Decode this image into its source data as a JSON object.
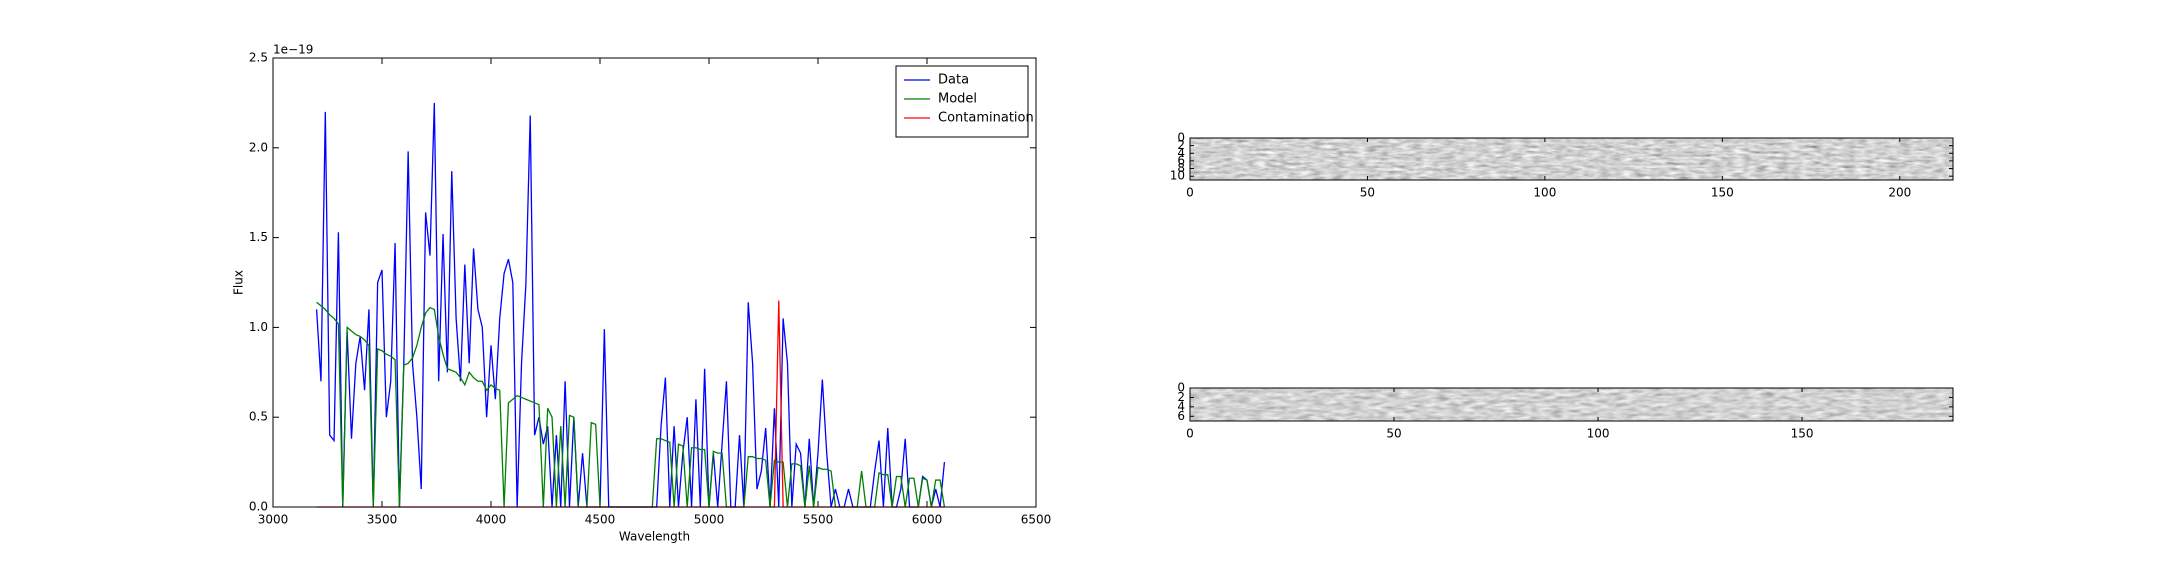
{
  "chart_data": [
    {
      "type": "line",
      "xlabel": "Wavelength",
      "ylabel": "Flux",
      "offset_label": "1e−19",
      "xlim": [
        3000,
        6500
      ],
      "xticks": [
        3000,
        3500,
        4000,
        4500,
        5000,
        5500,
        6000,
        6500
      ],
      "ylim": [
        0,
        2.5
      ],
      "yticks": [
        {
          "value": 0,
          "label": "0.0"
        },
        0.5,
        {
          "value": 1,
          "label": "1.0"
        },
        1.5,
        {
          "value": 2,
          "label": "2.0"
        },
        2.5
      ],
      "grid": false,
      "legend": "upper right",
      "x": [
        3200,
        3220,
        3240,
        3260,
        3280,
        3300,
        3320,
        3340,
        3360,
        3380,
        3400,
        3420,
        3440,
        3460,
        3480,
        3500,
        3520,
        3540,
        3560,
        3580,
        3600,
        3620,
        3640,
        3660,
        3680,
        3700,
        3720,
        3740,
        3760,
        3780,
        3800,
        3820,
        3840,
        3860,
        3880,
        3900,
        3920,
        3940,
        3960,
        3980,
        4000,
        4020,
        4040,
        4060,
        4080,
        4100,
        4120,
        4140,
        4160,
        4180,
        4200,
        4220,
        4240,
        4260,
        4280,
        4300,
        4320,
        4340,
        4360,
        4380,
        4400,
        4420,
        4440,
        4460,
        4480,
        4500,
        4520,
        4540,
        4560,
        4580,
        4600,
        4620,
        4640,
        4660,
        4680,
        4700,
        4720,
        4740,
        4760,
        4780,
        4800,
        4820,
        4840,
        4860,
        4880,
        4900,
        4920,
        4940,
        4960,
        4980,
        5000,
        5020,
        5040,
        5060,
        5080,
        5100,
        5120,
        5140,
        5160,
        5180,
        5200,
        5220,
        5240,
        5260,
        5280,
        5300,
        5320,
        5340,
        5360,
        5380,
        5400,
        5420,
        5440,
        5460,
        5480,
        5500,
        5520,
        5540,
        5560,
        5580,
        5600,
        5620,
        5640,
        5660,
        5680,
        5700,
        5720,
        5740,
        5760,
        5780,
        5800,
        5820,
        5840,
        5860,
        5880,
        5900,
        5920,
        5940,
        5960,
        5980,
        6000,
        6020,
        6040,
        6060,
        6080
      ],
      "series": [
        {
          "name": "Data",
          "color": "#0000ff",
          "values": [
            1.1,
            0.7,
            2.2,
            0.4,
            0.37,
            1.53,
            0,
            0.98,
            0.38,
            0.8,
            0.95,
            0.65,
            1.1,
            0,
            1.25,
            1.32,
            0.5,
            0.7,
            1.47,
            0,
            0.8,
            1.98,
            0.8,
            0.5,
            0.1,
            1.64,
            1.4,
            2.25,
            0.7,
            1.52,
            0.75,
            1.87,
            1.05,
            0.7,
            1.35,
            0.8,
            1.44,
            1.1,
            1.0,
            0.5,
            0.9,
            0.6,
            1.05,
            1.3,
            1.38,
            1.25,
            0,
            0.8,
            1.24,
            2.18,
            0.4,
            0.5,
            0.35,
            0.45,
            0,
            0.4,
            0,
            0.7,
            0,
            0.5,
            0,
            0.3,
            0,
            0,
            0,
            0,
            0.99,
            0,
            0,
            0,
            0,
            0,
            0,
            0,
            0,
            0,
            0,
            0,
            0,
            0.45,
            0.72,
            0,
            0.45,
            0,
            0.3,
            0.5,
            0,
            0.6,
            0,
            0.77,
            0,
            0.3,
            0,
            0.35,
            0.7,
            0,
            0,
            0.4,
            0,
            1.14,
            0.8,
            0.1,
            0.2,
            0.44,
            0,
            0.55,
            0,
            1.05,
            0.8,
            0,
            0.35,
            0.3,
            0,
            0.38,
            0,
            0.3,
            0.71,
            0.3,
            0,
            0.1,
            0,
            0,
            0.1,
            0,
            0,
            0,
            0,
            0,
            0.2,
            0.37,
            0,
            0.44,
            0,
            0,
            0.1,
            0.38,
            0,
            0,
            0,
            0.17,
            0.15,
            0,
            0.1,
            0,
            0.25
          ]
        },
        {
          "name": "Model",
          "color": "#008000",
          "values": [
            1.14,
            1.12,
            1.1,
            1.07,
            1.05,
            1.02,
            0,
            1.0,
            0.98,
            0.96,
            0.95,
            0.93,
            0.9,
            0,
            0.88,
            0.87,
            0.85,
            0.84,
            0.82,
            0,
            0.79,
            0.8,
            0.83,
            0.9,
            1.0,
            1.08,
            1.11,
            1.1,
            0.95,
            0.85,
            0.77,
            0.76,
            0.75,
            0.72,
            0.68,
            0.75,
            0.72,
            0.7,
            0.7,
            0.65,
            0.68,
            0.66,
            0.65,
            0,
            0.58,
            0.6,
            0.62,
            0.61,
            0.6,
            0.59,
            0.58,
            0.57,
            0,
            0.55,
            0.5,
            0,
            0.45,
            0,
            0.51,
            0.5,
            0,
            0,
            0,
            0.47,
            0.46,
            0,
            0,
            0,
            0,
            0,
            0,
            0,
            0,
            0,
            0,
            0,
            0,
            0,
            0.38,
            0.38,
            0.37,
            0.36,
            0,
            0.35,
            0.34,
            0,
            0.33,
            0.33,
            0.32,
            0.32,
            0,
            0.31,
            0.3,
            0.3,
            0,
            0,
            0,
            0,
            0,
            0.28,
            0.28,
            0.27,
            0.27,
            0.26,
            0,
            0.26,
            0.25,
            0.25,
            0,
            0.24,
            0.24,
            0.23,
            0,
            0.23,
            0,
            0.22,
            0.21,
            0.21,
            0.2,
            0,
            0,
            0,
            0,
            0,
            0,
            0.2,
            0,
            0,
            0,
            0.19,
            0.18,
            0.18,
            0,
            0.17,
            0.17,
            0,
            0.16,
            0.16,
            0,
            0.16,
            0.15,
            0,
            0.15,
            0.15,
            0
          ]
        },
        {
          "name": "Contamination",
          "color": "#ff0000",
          "values": [
            0,
            0,
            0,
            0,
            0,
            0,
            0,
            0,
            0,
            0,
            0,
            0,
            0,
            0,
            0,
            0,
            0,
            0,
            0,
            0,
            0,
            0,
            0,
            0,
            0,
            0,
            0,
            0,
            0,
            0,
            0,
            0,
            0,
            0,
            0,
            0,
            0,
            0,
            0,
            0,
            0,
            0,
            0,
            0,
            0,
            0,
            0,
            0,
            0,
            0,
            0,
            0,
            0,
            0,
            0,
            0,
            0,
            0,
            0,
            0,
            0,
            0,
            0,
            0,
            0,
            0,
            0,
            0,
            0,
            0,
            0,
            0,
            0,
            0,
            0,
            0,
            0,
            0,
            0,
            0,
            0,
            0,
            0,
            0,
            0,
            0,
            0,
            0,
            0,
            0,
            0,
            0,
            0,
            0,
            0,
            0,
            0,
            0,
            0,
            0,
            0,
            0,
            0,
            0,
            0,
            0,
            1.15,
            0,
            0,
            0,
            0,
            0,
            0,
            0,
            0,
            0,
            0,
            0,
            0,
            0,
            0,
            0,
            0,
            0,
            0,
            0,
            0,
            0,
            0,
            0,
            0,
            0,
            0,
            0,
            0,
            0,
            0,
            0,
            0,
            0,
            0,
            0,
            0,
            0,
            0
          ]
        }
      ]
    },
    {
      "type": "image",
      "xlim": [
        0,
        215
      ],
      "xticks": [
        0,
        50,
        100,
        150,
        200
      ],
      "ylim": [
        11,
        0
      ],
      "yticks": [
        0,
        2,
        4,
        6,
        8,
        10
      ]
    },
    {
      "type": "image",
      "xlim": [
        0,
        187
      ],
      "xticks": [
        0,
        50,
        100,
        150
      ],
      "ylim": [
        7,
        0
      ],
      "yticks": [
        0,
        2,
        4,
        6
      ]
    }
  ]
}
